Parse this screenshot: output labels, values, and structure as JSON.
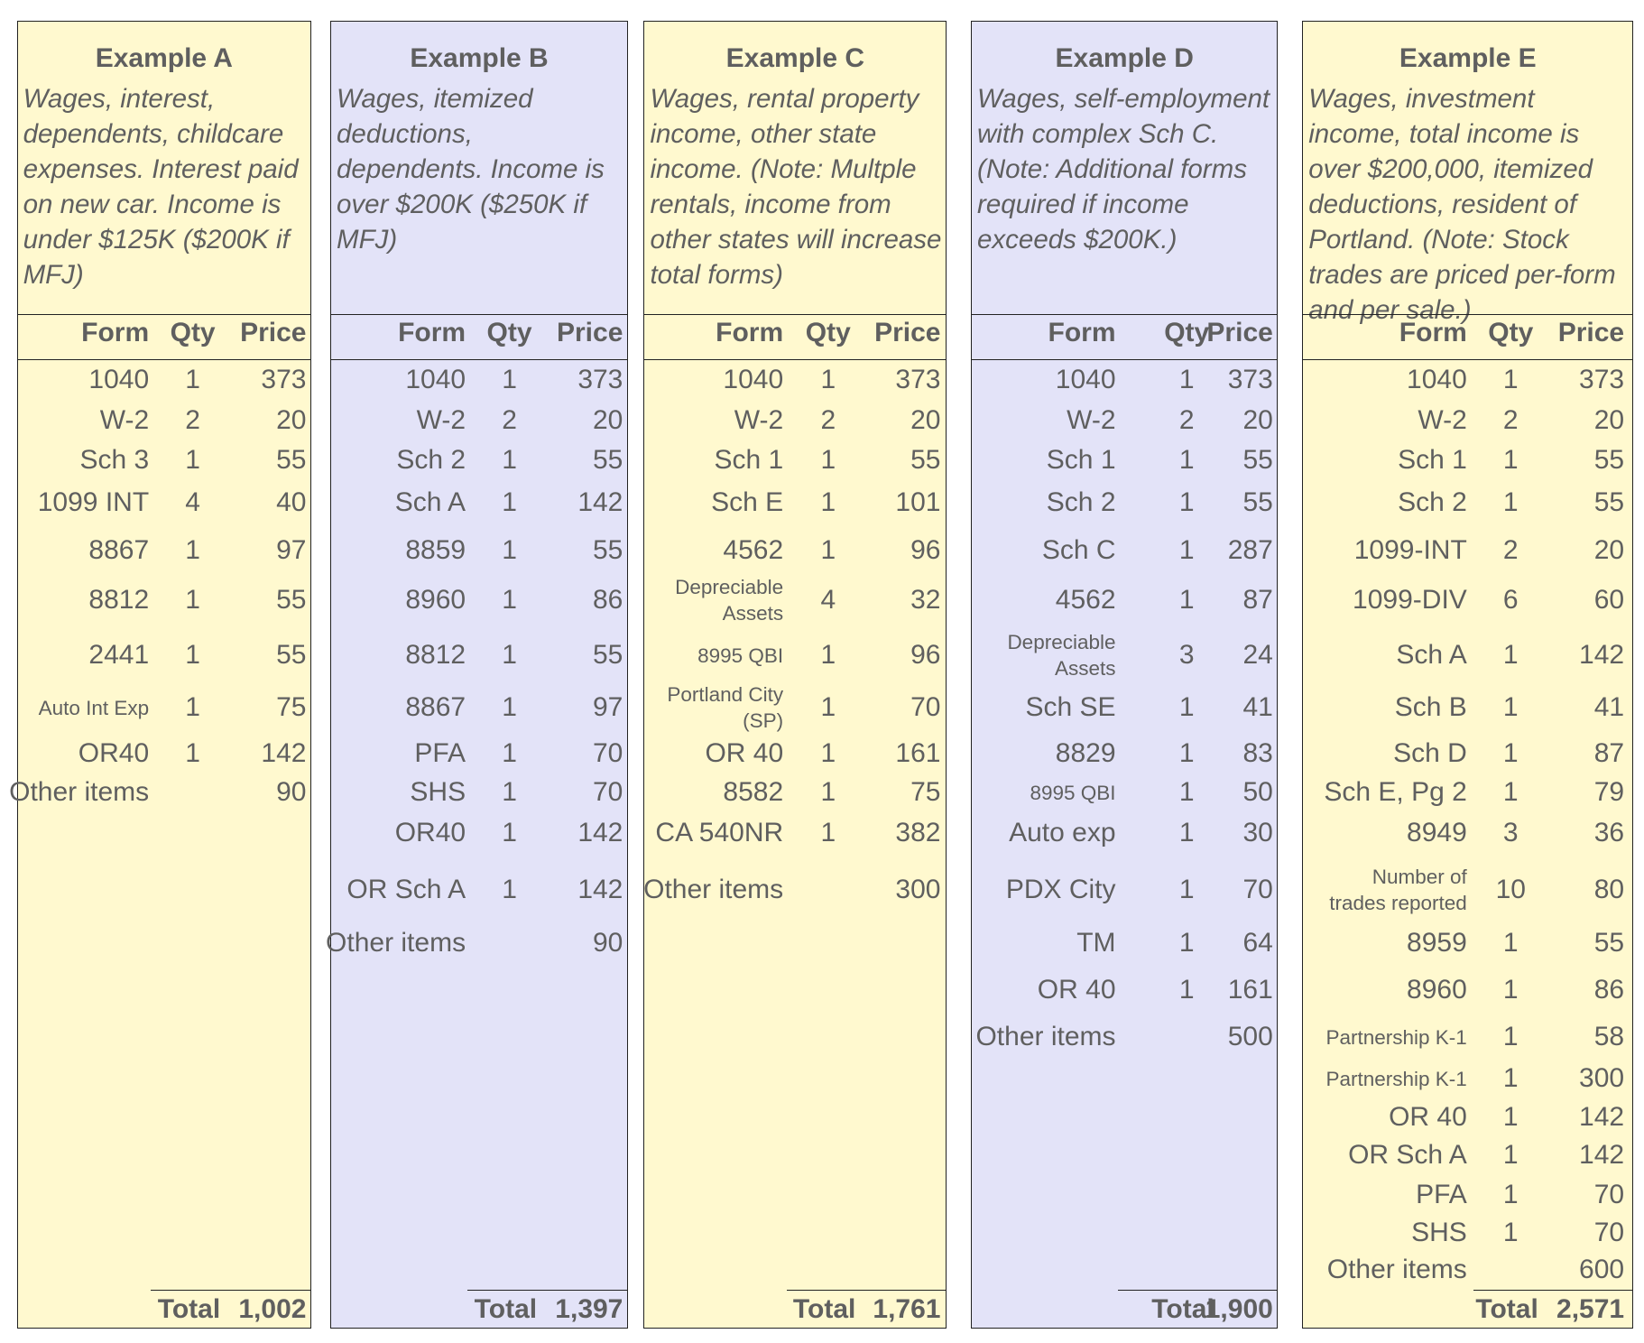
{
  "colors": {
    "yellow": "#fff9cf",
    "lavender": "#e3e3f8",
    "text": "#5f5f5f"
  },
  "headers": {
    "form": "Form",
    "qty": "Qty",
    "price": "Price",
    "total_label": "Total"
  },
  "examples": [
    {
      "title": "Example A",
      "description": "Wages, interest, dependents, childcare expenses.  Interest paid on new car. Income is under $125K ($200K if MFJ)",
      "color": "yellow",
      "rows": [
        {
          "form": "1040",
          "qty": "1",
          "price": "373"
        },
        {
          "form": "W-2",
          "qty": "2",
          "price": "20"
        },
        {
          "form": "Sch 3",
          "qty": "1",
          "price": "55"
        },
        {
          "form": "1099 INT",
          "qty": "4",
          "price": "40"
        },
        {
          "form": "8867",
          "qty": "1",
          "price": "97"
        },
        {
          "form": "8812",
          "qty": "1",
          "price": "55"
        },
        {
          "form": "2441",
          "qty": "1",
          "price": "55"
        },
        {
          "form": "Auto Int Exp",
          "qty": "1",
          "price": "75",
          "small": true
        },
        {
          "form": "OR40",
          "qty": "1",
          "price": "142"
        },
        {
          "form": "Other items",
          "qty": "",
          "price": "90"
        }
      ],
      "total": "1,002"
    },
    {
      "title": "Example B",
      "description": "Wages, itemized deductions, dependents. Income is over $200K ($250K if MFJ)",
      "color": "lavender",
      "rows": [
        {
          "form": "1040",
          "qty": "1",
          "price": "373"
        },
        {
          "form": "W-2",
          "qty": "2",
          "price": "20"
        },
        {
          "form": "Sch 2",
          "qty": "1",
          "price": "55"
        },
        {
          "form": "Sch A",
          "qty": "1",
          "price": "142"
        },
        {
          "form": "8859",
          "qty": "1",
          "price": "55"
        },
        {
          "form": "8960",
          "qty": "1",
          "price": "86"
        },
        {
          "form": "8812",
          "qty": "1",
          "price": "55"
        },
        {
          "form": "8867",
          "qty": "1",
          "price": "97"
        },
        {
          "form": "PFA",
          "qty": "1",
          "price": "70"
        },
        {
          "form": "SHS",
          "qty": "1",
          "price": "70"
        },
        {
          "form": "OR40",
          "qty": "1",
          "price": "142"
        },
        {
          "form": "OR Sch A",
          "qty": "1",
          "price": "142"
        },
        {
          "form": "Other items",
          "qty": "",
          "price": "90"
        }
      ],
      "total": "1,397"
    },
    {
      "title": "Example C",
      "description": "Wages, rental property income, other state income.  (Note: Multple rentals, income from other states will increase total forms)",
      "color": "yellow",
      "rows": [
        {
          "form": "1040",
          "qty": "1",
          "price": "373"
        },
        {
          "form": "W-2",
          "qty": "2",
          "price": "20"
        },
        {
          "form": "Sch 1",
          "qty": "1",
          "price": "55"
        },
        {
          "form": "Sch E",
          "qty": "1",
          "price": "101"
        },
        {
          "form": "4562",
          "qty": "1",
          "price": "96"
        },
        {
          "form": "Depreciable Assets",
          "qty": "4",
          "price": "32",
          "small": true
        },
        {
          "form": "8995 QBI",
          "qty": "1",
          "price": "96",
          "small": true
        },
        {
          "form": "Portland City (SP)",
          "qty": "1",
          "price": "70",
          "small": true
        },
        {
          "form": "OR 40",
          "qty": "1",
          "price": "161"
        },
        {
          "form": "8582",
          "qty": "1",
          "price": "75"
        },
        {
          "form": "CA 540NR",
          "qty": "1",
          "price": "382"
        },
        {
          "form": "Other items",
          "qty": "",
          "price": "300"
        }
      ],
      "total": "1,761"
    },
    {
      "title": "Example D",
      "description": "Wages, self-employment with complex Sch C.  (Note: Additional forms required if income exceeds $200K.)",
      "color": "lavender",
      "rows": [
        {
          "form": "1040",
          "qty": "1",
          "price": "373"
        },
        {
          "form": "W-2",
          "qty": "2",
          "price": "20"
        },
        {
          "form": "Sch 1",
          "qty": "1",
          "price": "55"
        },
        {
          "form": "Sch 2",
          "qty": "1",
          "price": "55"
        },
        {
          "form": "Sch C",
          "qty": "1",
          "price": "287"
        },
        {
          "form": "4562",
          "qty": "1",
          "price": "87"
        },
        {
          "form": "Depreciable Assets",
          "qty": "3",
          "price": "24",
          "small": true
        },
        {
          "form": "Sch SE",
          "qty": "1",
          "price": "41"
        },
        {
          "form": "8829",
          "qty": "1",
          "price": "83"
        },
        {
          "form": "8995 QBI",
          "qty": "1",
          "price": "50",
          "small": true
        },
        {
          "form": "Auto exp",
          "qty": "1",
          "price": "30"
        },
        {
          "form": "PDX City",
          "qty": "1",
          "price": "70"
        },
        {
          "form": "TM",
          "qty": "1",
          "price": "64"
        },
        {
          "form": "OR 40",
          "qty": "1",
          "price": "161"
        },
        {
          "form": "Other items",
          "qty": "",
          "price": "500"
        }
      ],
      "total": "1,900"
    },
    {
      "title": "Example E",
      "description": "Wages, investment income, total income is over $200,000, itemized deductions, resident of Portland.  (Note: Stock trades are priced per-form and per sale.)",
      "color": "yellow",
      "rows": [
        {
          "form": "1040",
          "qty": "1",
          "price": "373"
        },
        {
          "form": "W-2",
          "qty": "2",
          "price": "20"
        },
        {
          "form": "Sch 1",
          "qty": "1",
          "price": "55"
        },
        {
          "form": "Sch 2",
          "qty": "1",
          "price": "55"
        },
        {
          "form": "1099-INT",
          "qty": "2",
          "price": "20"
        },
        {
          "form": "1099-DIV",
          "qty": "6",
          "price": "60"
        },
        {
          "form": "Sch A",
          "qty": "1",
          "price": "142"
        },
        {
          "form": "Sch B",
          "qty": "1",
          "price": "41"
        },
        {
          "form": "Sch D",
          "qty": "1",
          "price": "87"
        },
        {
          "form": "Sch E, Pg 2",
          "qty": "1",
          "price": "79"
        },
        {
          "form": "8949",
          "qty": "3",
          "price": "36"
        },
        {
          "form": "Number of trades reported",
          "qty": "10",
          "price": "80",
          "small": true
        },
        {
          "form": "8959",
          "qty": "1",
          "price": "55"
        },
        {
          "form": "8960",
          "qty": "1",
          "price": "86"
        },
        {
          "form": "Partnership K-1",
          "qty": "1",
          "price": "58",
          "small": true
        },
        {
          "form": "Partnership K-1",
          "qty": "1",
          "price": "300",
          "small": true
        },
        {
          "form": "OR 40",
          "qty": "1",
          "price": "142"
        },
        {
          "form": "OR Sch A",
          "qty": "1",
          "price": "142"
        },
        {
          "form": "PFA",
          "qty": "1",
          "price": "70"
        },
        {
          "form": "SHS",
          "qty": "1",
          "price": "70"
        },
        {
          "form": "Other items",
          "qty": "",
          "price": "600"
        }
      ],
      "total": "2,571"
    }
  ]
}
